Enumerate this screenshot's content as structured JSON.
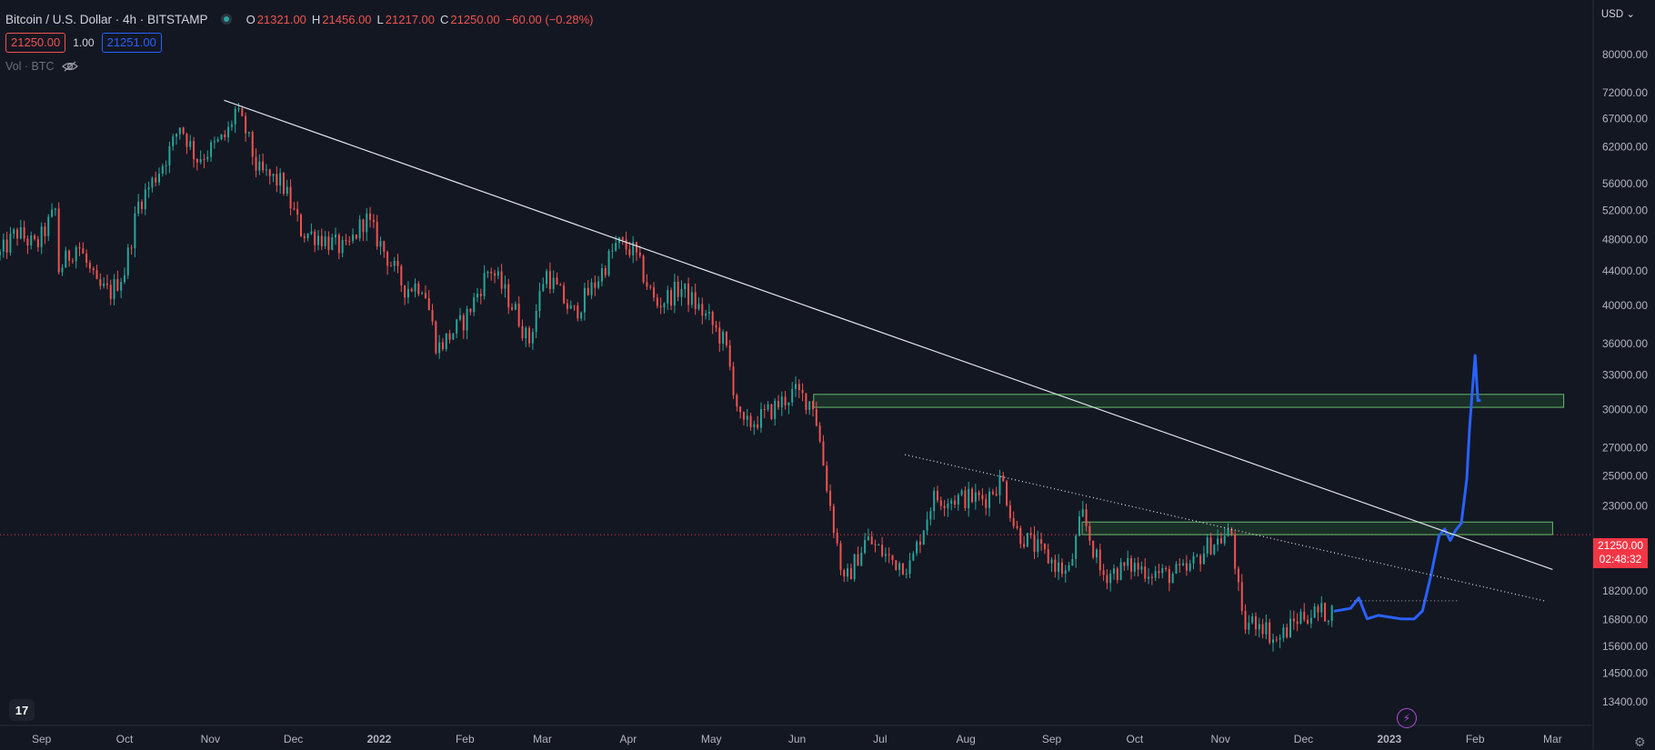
{
  "header": {
    "title": "Bitcoin / U.S. Dollar · 4h · BITSTAMP",
    "ohlc": {
      "o_label": "O",
      "o_value": "21321.00",
      "h_label": "H",
      "h_value": "21456.00",
      "l_label": "L",
      "l_value": "21217.00",
      "c_label": "C",
      "c_value": "21250.00",
      "change": "−60.00 (−0.28%)"
    }
  },
  "trade": {
    "sell": "21250.00",
    "spread": "1.00",
    "buy": "21251.00"
  },
  "volume_label": "Vol · BTC",
  "currency_label": "USD ⌄",
  "price_tag": {
    "price": "21250.00",
    "countdown": "02:48:32"
  },
  "logo_text": "17",
  "colors": {
    "bg": "#131722",
    "up": "#26a69a",
    "down": "#ef5350",
    "projection": "#2962ff",
    "zone": "#4caf50",
    "trendline": "#e0e3eb"
  },
  "chart_data": {
    "type": "line",
    "title": "Bitcoin / U.S. Dollar · 4h · BITSTAMP",
    "y_scale": "log",
    "ylim": [
      12800,
      93000
    ],
    "xlim": [
      "2021-08-17",
      "2023-03-15"
    ],
    "y_ticks": [
      80000,
      72000,
      67000,
      62000,
      56000,
      52000,
      48000,
      44000,
      40000,
      36000,
      33000,
      30000,
      27000,
      25000,
      23000,
      21250,
      19800,
      18200,
      16800,
      15600,
      14500,
      13400
    ],
    "y_tick_labels": [
      "80000.00",
      "72000.00",
      "67000.00",
      "62000.00",
      "56000.00",
      "52000.00",
      "48000.00",
      "44000.00",
      "40000.00",
      "36000.00",
      "33000.00",
      "30000.00",
      "27000.00",
      "25000.00",
      "23000.00",
      "21250.00",
      "19800.00",
      "18200.00",
      "16800.00",
      "15600.00",
      "14500.00",
      "13400.00"
    ],
    "x_ticks": [
      {
        "date": "2021-09-01",
        "label": "Sep"
      },
      {
        "date": "2021-10-01",
        "label": "Oct"
      },
      {
        "date": "2021-11-01",
        "label": "Nov"
      },
      {
        "date": "2021-12-01",
        "label": "Dec"
      },
      {
        "date": "2022-01-01",
        "label": "2022"
      },
      {
        "date": "2022-02-01",
        "label": "Feb"
      },
      {
        "date": "2022-03-01",
        "label": "Mar"
      },
      {
        "date": "2022-04-01",
        "label": "Apr"
      },
      {
        "date": "2022-05-01",
        "label": "May"
      },
      {
        "date": "2022-06-01",
        "label": "Jun"
      },
      {
        "date": "2022-07-01",
        "label": "Jul"
      },
      {
        "date": "2022-08-01",
        "label": "Aug"
      },
      {
        "date": "2022-09-01",
        "label": "Sep"
      },
      {
        "date": "2022-10-01",
        "label": "Oct"
      },
      {
        "date": "2022-11-01",
        "label": "Nov"
      },
      {
        "date": "2022-12-01",
        "label": "Dec"
      },
      {
        "date": "2023-01-01",
        "label": "2023"
      },
      {
        "date": "2023-02-01",
        "label": "Feb"
      },
      {
        "date": "2023-03-01",
        "label": "Mar"
      }
    ],
    "price_line": 21250,
    "candles": [
      [
        "2021-08-17",
        46000
      ],
      [
        "2021-08-23",
        49000
      ],
      [
        "2021-08-30",
        47000
      ],
      [
        "2021-09-06",
        52000
      ],
      [
        "2021-09-07",
        44000
      ],
      [
        "2021-09-14",
        47500
      ],
      [
        "2021-09-21",
        42000
      ],
      [
        "2021-09-26",
        41500
      ],
      [
        "2021-10-01",
        44000
      ],
      [
        "2021-10-06",
        53000
      ],
      [
        "2021-10-12",
        57000
      ],
      [
        "2021-10-18",
        62000
      ],
      [
        "2021-10-21",
        66000
      ],
      [
        "2021-10-27",
        60000
      ],
      [
        "2021-11-01",
        61500
      ],
      [
        "2021-11-07",
        64000
      ],
      [
        "2021-11-10",
        68500
      ],
      [
        "2021-11-14",
        64500
      ],
      [
        "2021-11-18",
        58000
      ],
      [
        "2021-11-27",
        56000
      ],
      [
        "2021-12-04",
        49000
      ],
      [
        "2021-12-10",
        48500
      ],
      [
        "2021-12-20",
        46500
      ],
      [
        "2021-12-27",
        51000
      ],
      [
        "2022-01-02",
        47000
      ],
      [
        "2022-01-10",
        42000
      ],
      [
        "2022-01-17",
        42500
      ],
      [
        "2022-01-22",
        35500
      ],
      [
        "2022-02-01",
        38500
      ],
      [
        "2022-02-10",
        44500
      ],
      [
        "2022-02-20",
        39000
      ],
      [
        "2022-02-24",
        36000
      ],
      [
        "2022-03-02",
        44000
      ],
      [
        "2022-03-12",
        39000
      ],
      [
        "2022-03-20",
        42500
      ],
      [
        "2022-03-28",
        47500
      ],
      [
        "2022-04-03",
        46500
      ],
      [
        "2022-04-11",
        40000
      ],
      [
        "2022-04-20",
        42000
      ],
      [
        "2022-04-30",
        38500
      ],
      [
        "2022-05-06",
        36000
      ],
      [
        "2022-05-12",
        28500
      ],
      [
        "2022-05-20",
        29500
      ],
      [
        "2022-05-31",
        31500
      ],
      [
        "2022-06-07",
        30500
      ],
      [
        "2022-06-13",
        23000
      ],
      [
        "2022-06-18",
        18500
      ],
      [
        "2022-06-26",
        21000
      ],
      [
        "2022-07-05",
        19800
      ],
      [
        "2022-07-12",
        19500
      ],
      [
        "2022-07-20",
        23500
      ],
      [
        "2022-07-28",
        23500
      ],
      [
        "2022-08-08",
        23500
      ],
      [
        "2022-08-14",
        24800
      ],
      [
        "2022-08-19",
        21500
      ],
      [
        "2022-08-30",
        20000
      ],
      [
        "2022-09-07",
        19000
      ],
      [
        "2022-09-12",
        22500
      ],
      [
        "2022-09-19",
        19000
      ],
      [
        "2022-09-30",
        19500
      ],
      [
        "2022-10-12",
        19000
      ],
      [
        "2022-10-20",
        19200
      ],
      [
        "2022-10-28",
        20700
      ],
      [
        "2022-11-05",
        21300
      ],
      [
        "2022-11-09",
        16500
      ],
      [
        "2022-11-15",
        16800
      ],
      [
        "2022-11-21",
        15800
      ],
      [
        "2022-11-30",
        17000
      ],
      [
        "2022-12-05",
        17100
      ],
      [
        "2022-12-12",
        17200
      ]
    ],
    "projection": [
      [
        "2022-12-12",
        17200
      ],
      [
        "2022-12-18",
        17500
      ],
      [
        "2022-12-21",
        17800
      ],
      [
        "2022-12-24",
        16700
      ],
      [
        "2022-12-28",
        16900
      ],
      [
        "2023-01-05",
        16800
      ],
      [
        "2023-01-10",
        17000
      ],
      [
        "2023-01-13",
        17300
      ],
      [
        "2023-01-16",
        19000
      ],
      [
        "2023-01-19",
        21000
      ],
      [
        "2023-01-21",
        21500
      ],
      [
        "2023-01-23",
        20800
      ],
      [
        "2023-01-25",
        21600
      ],
      [
        "2023-01-27",
        22000
      ],
      [
        "2023-01-29",
        25000
      ],
      [
        "2023-01-30",
        28500
      ],
      [
        "2023-01-31",
        31500
      ],
      [
        "2023-02-01",
        35000
      ],
      [
        "2023-02-02",
        30500
      ],
      [
        "2023-02-03",
        31000
      ]
    ],
    "zones": [
      {
        "x0": "2022-06-07",
        "x1": "2023-03-05",
        "y0": 30200,
        "y1": 31300
      },
      {
        "x0": "2022-09-12",
        "x1": "2023-03-01",
        "y0": 21250,
        "y1": 22000
      }
    ],
    "trendlines": [
      {
        "from": [
          "2021-11-06",
          70500
        ],
        "to": [
          "2023-03-01",
          19300
        ],
        "style": "solid"
      },
      {
        "from": [
          "2022-07-10",
          26500
        ],
        "to": [
          "2023-02-26",
          17700
        ],
        "style": "dotted"
      }
    ],
    "hline_segment": {
      "x0": "2022-12-18",
      "x1": "2023-01-26",
      "y": 17700
    }
  }
}
